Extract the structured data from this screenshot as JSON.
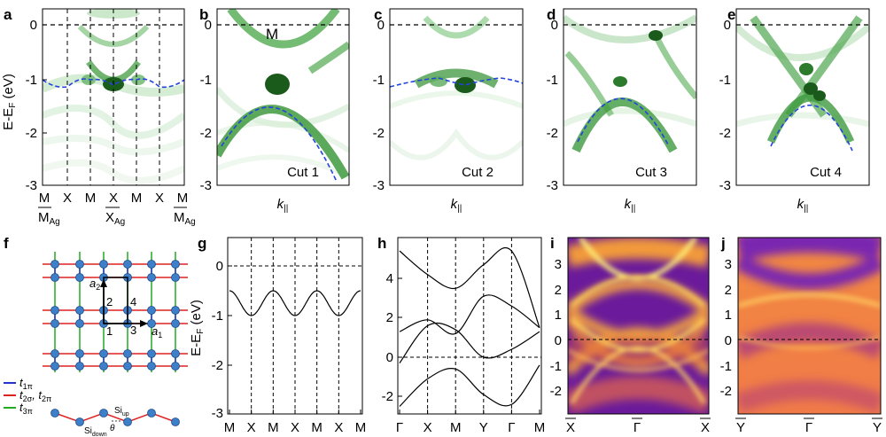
{
  "panels": {
    "a": {
      "letter": "a",
      "ylabel_main": "E-E",
      "ylabel_sub": "F",
      "ylabel_unit": " (eV)",
      "yticks": [
        "0",
        "-1",
        "-2",
        "-3"
      ],
      "xticks_top": [
        "M",
        "X",
        "M",
        "X",
        "M",
        "X",
        "M"
      ],
      "xticks_bottom": [
        "M",
        "X",
        "M"
      ],
      "xticks_bottom_sub": "Ag"
    },
    "b": {
      "letter": "b",
      "cut": "Cut 1",
      "mark": "M",
      "yticks": [
        "0",
        "-1",
        "-2",
        "-3"
      ],
      "xlabel_main": "k",
      "xlabel_sub": "||"
    },
    "c": {
      "letter": "c",
      "cut": "Cut 2",
      "yticks": [
        "0",
        "-1",
        "-2",
        "-3"
      ],
      "xlabel_main": "k",
      "xlabel_sub": "||"
    },
    "d": {
      "letter": "d",
      "cut": "Cut 3",
      "yticks": [
        "0",
        "-1",
        "-2",
        "-3"
      ],
      "xlabel_main": "k",
      "xlabel_sub": "||"
    },
    "e": {
      "letter": "e",
      "cut": "Cut 4",
      "yticks": [
        "0",
        "-1",
        "-2",
        "-3"
      ],
      "xlabel_main": "k",
      "xlabel_sub": "||"
    },
    "f": {
      "letter": "f",
      "a1": "a",
      "a1_sub": "1",
      "a2": "a",
      "a2_sub": "2",
      "sites": [
        "1",
        "2",
        "3",
        "4"
      ],
      "legend": [
        {
          "main": "t",
          "sub": "1π",
          "color": "#2233cc"
        },
        {
          "main": "t",
          "sub": "2σ",
          "extra": ", t",
          "sub2": "2π",
          "color": "#dd2222"
        },
        {
          "main": "t",
          "sub": "3π",
          "color": "#22aa22"
        }
      ],
      "si_up": "Si",
      "si_up_sub": "up",
      "si_down": "Si",
      "si_down_sub": "down",
      "theta": "θ"
    },
    "g": {
      "letter": "g",
      "ylabel_main": "E-E",
      "ylabel_sub": "F",
      "ylabel_unit": " (eV)",
      "yticks": [
        "0",
        "-1",
        "-2",
        "-3"
      ],
      "xticks": [
        "M",
        "X",
        "M",
        "X",
        "M",
        "X",
        "M"
      ]
    },
    "h": {
      "letter": "h",
      "yticks": [
        "4",
        "2",
        "0",
        "-2"
      ],
      "xticks": [
        "Γ",
        "X",
        "M",
        "Y",
        "Γ",
        "M"
      ]
    },
    "i": {
      "letter": "i",
      "yticks": [
        "3",
        "2",
        "1",
        "0",
        "-1",
        "-2"
      ],
      "xticks": [
        "X",
        "Γ",
        "X"
      ]
    },
    "j": {
      "letter": "j",
      "yticks": [
        "3",
        "2",
        "1",
        "0",
        "-1",
        "-2"
      ],
      "xticks": [
        "Y",
        "Γ",
        "Y"
      ]
    }
  },
  "chart_data": [
    {
      "type": "line",
      "panel": "g",
      "ylim": [
        -3,
        0.5
      ],
      "x": [
        0,
        1,
        2,
        3,
        4,
        5,
        6
      ],
      "series": [
        {
          "values": [
            -0.5,
            -1.0,
            -0.5,
            -1.0,
            -0.5,
            -1.0,
            -0.5
          ]
        }
      ]
    },
    {
      "type": "line",
      "panel": "h",
      "ylim": [
        -3,
        6
      ],
      "x": [
        0,
        1,
        2,
        3,
        4,
        5
      ],
      "series": [
        {
          "values": [
            5.4,
            4.2,
            3.5,
            4.7,
            5.4,
            1.5
          ]
        },
        {
          "values": [
            1.3,
            1.9,
            1.2,
            3.1,
            2.6,
            1.5
          ]
        },
        {
          "values": [
            -0.3,
            1.6,
            1.4,
            0.0,
            0.4,
            1.3
          ]
        },
        {
          "values": [
            -2.5,
            -1.1,
            -0.6,
            -1.9,
            -2.4,
            -0.4
          ]
        }
      ]
    },
    {
      "type": "heatmap",
      "panel": "i",
      "ylim": [
        -2.8,
        3.8
      ]
    },
    {
      "type": "heatmap",
      "panel": "j",
      "ylim": [
        -2.8,
        3.8
      ]
    }
  ]
}
